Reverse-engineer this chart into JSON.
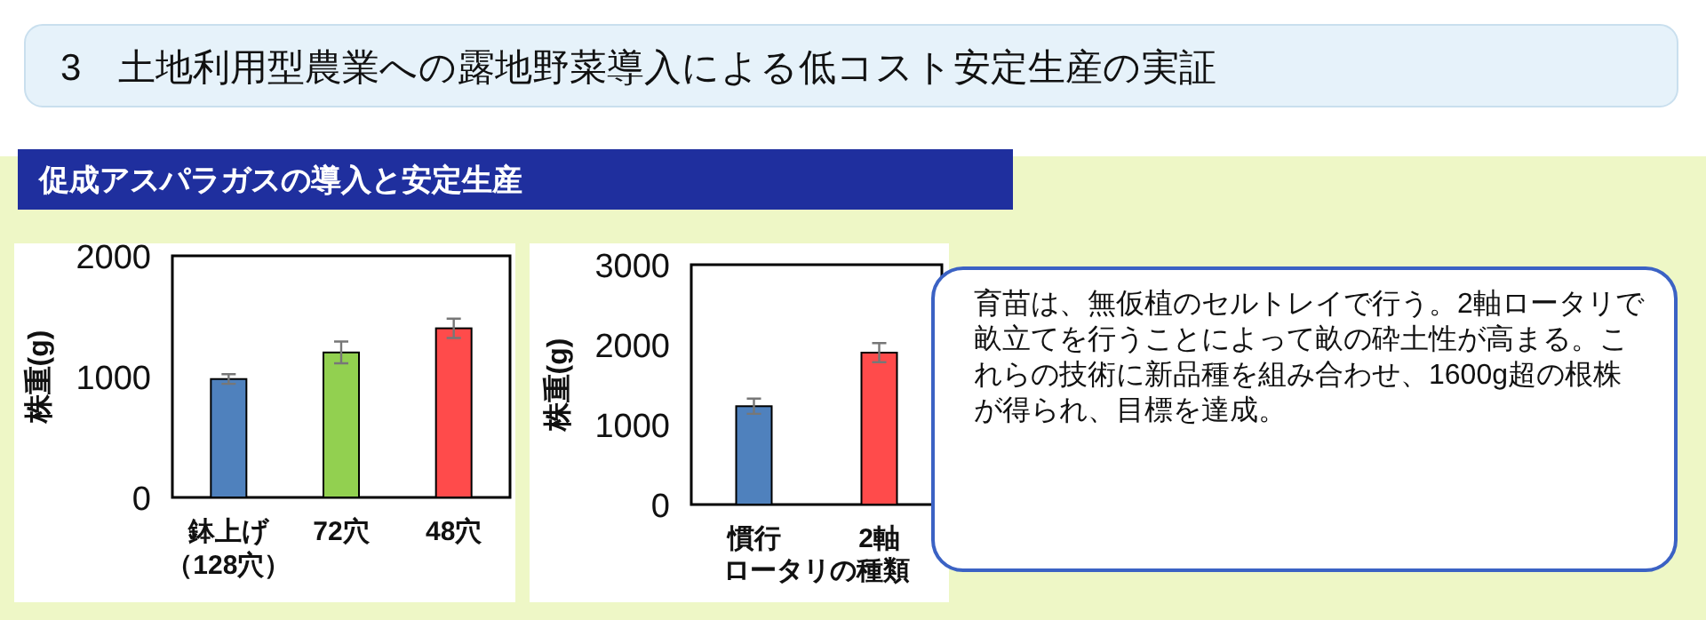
{
  "chart_data": [
    {
      "type": "bar",
      "title": "3　土地利用型農業への露地野菜導入による低コスト安定生産の実証",
      "subtitle": "促成アスパラガスの導入と安定生産",
      "ylabel": "株重(g)",
      "categories": [
        "鉢上げ（128穴）",
        "72穴",
        "48穴"
      ],
      "values": [
        980,
        1200,
        1400
      ],
      "colors": [
        "#4f81bd",
        "#92d050",
        "#ff4b4b"
      ],
      "errors": [
        40,
        90,
        80
      ],
      "ylim": [
        0,
        2000
      ],
      "yticks": [
        0,
        1000,
        2000
      ],
      "grid": false
    },
    {
      "type": "bar",
      "ylabel": "株重(g)",
      "xlabel": "ロータリの種類",
      "categories": [
        "慣行",
        "2軸"
      ],
      "values": [
        1230,
        1900
      ],
      "colors": [
        "#4f81bd",
        "#ff4b4b"
      ],
      "errors": [
        95,
        120
      ],
      "ylim": [
        0,
        3000
      ],
      "yticks": [
        0,
        1000,
        2000,
        3000
      ],
      "grid": false
    },
    {
      "type": "other",
      "annotations": [
        "育苗は、無仮植のセルトレイで行う。2軸ロータリで畝立てを行うことによって畝の砕土性が高まる。これらの技術に新品種を組み合わせ、1600g超の根株が得られ、目標を達成。"
      ]
    }
  ]
}
